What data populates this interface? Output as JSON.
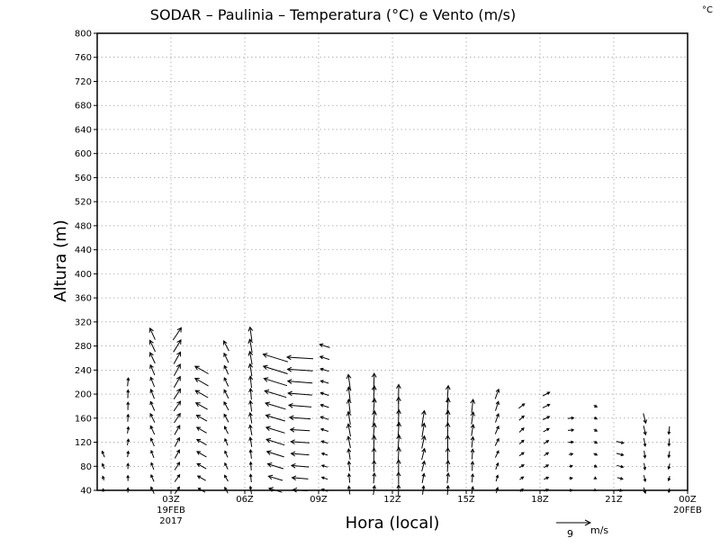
{
  "chart_data": {
    "type": "vector-field",
    "title": "SODAR  –  Paulinia  –  Temperatura (°C) e Vento (m/s)",
    "corner_unit": "°C",
    "ylabel": "Altura (m)",
    "xlabel": "Hora (local)",
    "ylim": [
      40,
      800
    ],
    "y_ticks": [
      "40",
      "80",
      "120",
      "160",
      "200",
      "240",
      "280",
      "320",
      "360",
      "400",
      "440",
      "480",
      "520",
      "560",
      "600",
      "640",
      "680",
      "720",
      "760",
      "800"
    ],
    "xlim": [
      0,
      24
    ],
    "x_ticks": [
      {
        "x": 3,
        "label": "03Z",
        "sub1": "19FEB",
        "sub2": "2017"
      },
      {
        "x": 6,
        "label": "06Z",
        "sub1": "",
        "sub2": ""
      },
      {
        "x": 9,
        "label": "09Z",
        "sub1": "",
        "sub2": ""
      },
      {
        "x": 12,
        "label": "12Z",
        "sub1": "",
        "sub2": ""
      },
      {
        "x": 15,
        "label": "15Z",
        "sub1": "",
        "sub2": ""
      },
      {
        "x": 18,
        "label": "18Z",
        "sub1": "",
        "sub2": ""
      },
      {
        "x": 21,
        "label": "21Z",
        "sub1": "",
        "sub2": ""
      },
      {
        "x": 24,
        "label": "00Z",
        "sub1": "20FEB",
        "sub2": ""
      }
    ],
    "grid": true,
    "reference_vector": {
      "speed": 9,
      "speed_label": "9",
      "unit": "m/s"
    },
    "hours": [
      {
        "x": 0,
        "top": 100,
        "u": -0.5,
        "v": 1.5
      },
      {
        "x": 1,
        "top": 220,
        "u": 0.2,
        "v": 2.2
      },
      {
        "x": 2,
        "top": 300,
        "u": -1.3,
        "v": 3.0
      },
      {
        "x": 3,
        "top": 300,
        "u": 2.0,
        "v": 3.3
      },
      {
        "x": 4,
        "top": 240,
        "u": -3.5,
        "v": 2.0
      },
      {
        "x": 5,
        "top": 280,
        "u": -1.3,
        "v": 2.6
      },
      {
        "x": 6,
        "top": 300,
        "u": -0.5,
        "v": 3.6
      },
      {
        "x": 7,
        "top": 260,
        "u": -6.5,
        "v": 2.0
      },
      {
        "x": 8,
        "top": 260,
        "u": -7.0,
        "v": 0.5
      },
      {
        "x": 9,
        "top": 280,
        "u": -2.5,
        "v": 0.8
      },
      {
        "x": 10,
        "top": 220,
        "u": -0.6,
        "v": 4.0
      },
      {
        "x": 11,
        "top": 220,
        "u": 0.3,
        "v": 4.5
      },
      {
        "x": 12,
        "top": 200,
        "u": 0.2,
        "v": 5.0
      },
      {
        "x": 13,
        "top": 170,
        "u": 0.8,
        "v": 4.0
      },
      {
        "x": 14,
        "top": 200,
        "u": 0.2,
        "v": 4.5
      },
      {
        "x": 15,
        "top": 180,
        "u": 0.4,
        "v": 3.5
      },
      {
        "x": 16,
        "top": 200,
        "u": 1.0,
        "v": 2.5
      },
      {
        "x": 17,
        "top": 180,
        "u": 1.5,
        "v": 1.2
      },
      {
        "x": 18,
        "top": 200,
        "u": 1.8,
        "v": 1.0
      },
      {
        "x": 19,
        "top": 170,
        "u": 1.5,
        "v": 0.2
      },
      {
        "x": 20,
        "top": 180,
        "u": 1.0,
        "v": -0.5
      },
      {
        "x": 21,
        "top": 120,
        "u": 2.0,
        "v": -0.5
      },
      {
        "x": 22,
        "top": 160,
        "u": 0.5,
        "v": -2.5
      },
      {
        "x": 23,
        "top": 140,
        "u": -0.3,
        "v": -2.0
      }
    ]
  }
}
